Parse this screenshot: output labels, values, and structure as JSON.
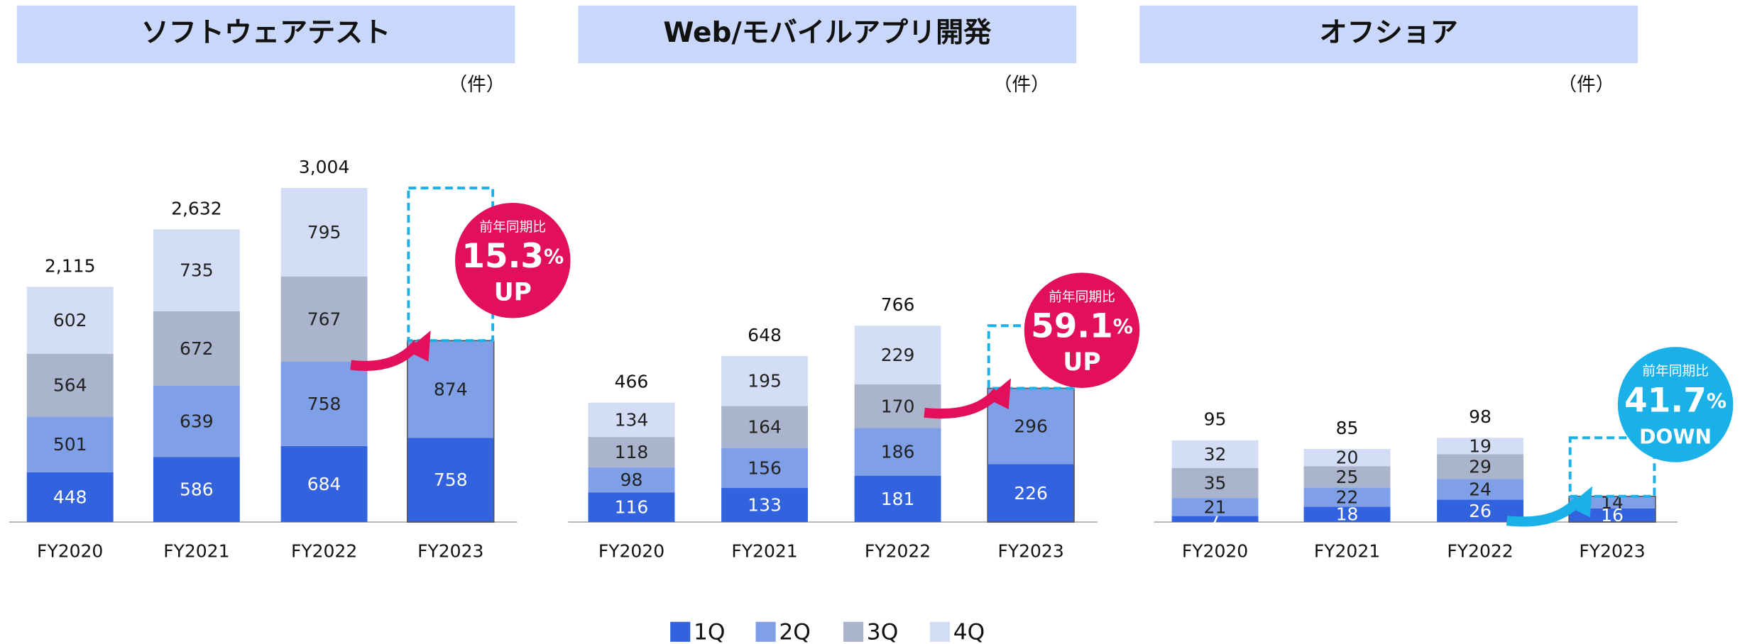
{
  "chart_data": [
    {
      "type": "bar",
      "stacked": true,
      "title": "ソフトウェアテスト",
      "unit": "（件）",
      "categories": [
        "FY2020",
        "FY2021",
        "FY2022",
        "FY2023"
      ],
      "series": [
        {
          "name": "1Q",
          "color": "#3262dd",
          "values": [
            448,
            586,
            684,
            758
          ]
        },
        {
          "name": "2Q",
          "color": "#7f9fe7",
          "values": [
            501,
            639,
            758,
            874
          ]
        },
        {
          "name": "3Q",
          "color": "#aab5cd",
          "values": [
            564,
            672,
            767,
            null
          ]
        },
        {
          "name": "4Q",
          "color": "#d4ddf6",
          "values": [
            602,
            735,
            795,
            null
          ]
        }
      ],
      "totals": [
        2115,
        2632,
        3004,
        null
      ],
      "total_labels": [
        "2,115",
        "2,632",
        "3,004",
        null
      ],
      "ylim": [
        0,
        3000
      ],
      "annotation": {
        "label": "前年同期比",
        "change": 15.3,
        "change_unit": "%",
        "direction": "UP",
        "color": "#e2105b"
      }
    },
    {
      "type": "bar",
      "stacked": true,
      "title": "Web/モバイルアプリ開発",
      "unit": "（件）",
      "categories": [
        "FY2020",
        "FY2021",
        "FY2022",
        "FY2023"
      ],
      "series": [
        {
          "name": "1Q",
          "color": "#3262dd",
          "values": [
            116,
            133,
            181,
            226
          ]
        },
        {
          "name": "2Q",
          "color": "#7f9fe7",
          "values": [
            98,
            156,
            186,
            296
          ]
        },
        {
          "name": "3Q",
          "color": "#aab5cd",
          "values": [
            118,
            164,
            170,
            null
          ]
        },
        {
          "name": "4Q",
          "color": "#d4ddf6",
          "values": [
            134,
            195,
            229,
            null
          ]
        }
      ],
      "totals": [
        466,
        648,
        766,
        null
      ],
      "ylim": [
        0,
        800
      ],
      "annotation": {
        "label": "前年同期比",
        "change": 59.1,
        "change_unit": "%",
        "direction": "UP",
        "color": "#e2105b"
      }
    },
    {
      "type": "bar",
      "stacked": true,
      "title": "オフショア",
      "unit": "（件）",
      "categories": [
        "FY2020",
        "FY2021",
        "FY2022",
        "FY2023"
      ],
      "series": [
        {
          "name": "1Q",
          "color": "#3262dd",
          "values": [
            7,
            18,
            26,
            16
          ]
        },
        {
          "name": "2Q",
          "color": "#7f9fe7",
          "values": [
            21,
            22,
            24,
            14
          ]
        },
        {
          "name": "3Q",
          "color": "#aab5cd",
          "values": [
            35,
            25,
            29,
            null
          ]
        },
        {
          "name": "4Q",
          "color": "#d4ddf6",
          "values": [
            32,
            20,
            19,
            null
          ]
        }
      ],
      "totals": [
        95,
        85,
        98,
        null
      ],
      "ylim": [
        0,
        100
      ],
      "annotation": {
        "label": "前年同期比",
        "change": 41.7,
        "change_unit": "%",
        "direction": "DOWN",
        "color": "#1ab1e9"
      }
    }
  ]
}
